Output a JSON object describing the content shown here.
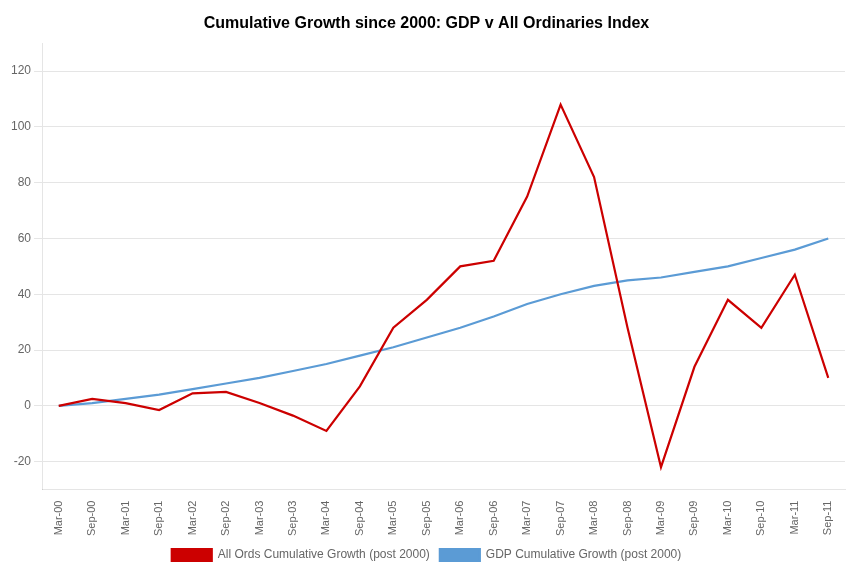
{
  "chart_data": {
    "type": "line",
    "title": "Cumulative Growth since 2000: GDP v All Ordinaries Index",
    "categories": [
      "Mar-00",
      "Sep-00",
      "Mar-01",
      "Sep-01",
      "Mar-02",
      "Sep-02",
      "Mar-03",
      "Sep-03",
      "Mar-04",
      "Sep-04",
      "Mar-05",
      "Sep-05",
      "Mar-06",
      "Sep-06",
      "Mar-07",
      "Sep-07",
      "Mar-08",
      "Sep-08",
      "Mar-09",
      "Sep-09",
      "Mar-10",
      "Sep-10",
      "Mar-11",
      "Sep-11"
    ],
    "series": [
      {
        "name": "All Ords Cumulative Growth (post 2000)",
        "color": "#cc0000",
        "values": [
          0.0,
          2.5,
          1.0,
          -1.5,
          4.5,
          5.0,
          1.0,
          -3.5,
          -9.0,
          7.0,
          28.0,
          38.0,
          50.0,
          52.0,
          75.0,
          108.0,
          82.0,
          28.0,
          -22.0,
          14.0,
          38.0,
          28.0,
          47.0,
          10.0
        ]
      },
      {
        "name": "GDP Cumulative Growth (post 2000)",
        "color": "#5b9bd5",
        "values": [
          0.0,
          1.0,
          2.5,
          4.0,
          6.0,
          8.0,
          10.0,
          12.5,
          15.0,
          18.0,
          21.0,
          24.5,
          28.0,
          32.0,
          36.5,
          40.0,
          43.0,
          45.0,
          46.0,
          48.0,
          50.0,
          53.0,
          56.0,
          60.0
        ]
      }
    ],
    "ylim": [
      -30,
      130
    ],
    "yticks": [
      -20,
      0,
      20,
      40,
      60,
      80,
      100,
      120
    ],
    "grid": "y",
    "legend": "bottom"
  }
}
